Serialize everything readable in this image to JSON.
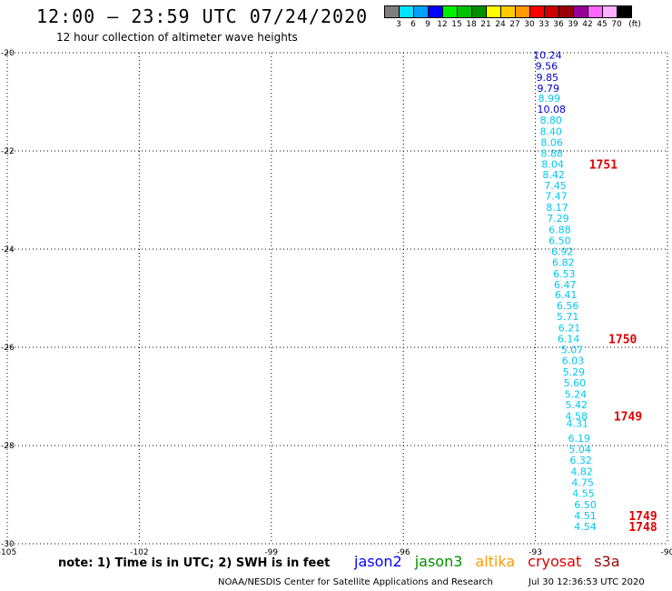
{
  "header": {
    "title": "12:00 – 23:59 UTC 07/24/2020",
    "subtitle": "12 hour collection of altimeter wave heights"
  },
  "color_scale": {
    "colors": [
      "#7f7f7f",
      "#00e5ff",
      "#00a0ff",
      "#0000ff",
      "#00f000",
      "#00c000",
      "#009000",
      "#ffff00",
      "#ffcc00",
      "#ff9900",
      "#ff0000",
      "#cc0000",
      "#990000",
      "#990099",
      "#ff66ff",
      "#ffb0ff",
      "#000000"
    ],
    "labels": [
      "3",
      "6",
      "9",
      "12",
      "15",
      "18",
      "21",
      "24",
      "27",
      "30",
      "33",
      "36",
      "39",
      "42",
      "45",
      "70",
      "(ft)"
    ]
  },
  "chart_data": {
    "type": "scatter",
    "title": "12:00 – 23:59 UTC 07/24/2020",
    "subtitle": "12 hour collection of altimeter wave heights",
    "xlim": [
      -105,
      -90
    ],
    "ylim": [
      -30,
      -20
    ],
    "x_ticks": [
      -105,
      -102,
      -99,
      -96,
      -93,
      -90
    ],
    "x_tick_labels": [
      "-105",
      "-102",
      "-99",
      "-96",
      "-93",
      "-90"
    ],
    "y_ticks": [
      -20,
      -22,
      -24,
      -26,
      -28,
      -30
    ],
    "y_tick_labels": [
      "-20",
      "-22",
      "-24",
      "-26",
      "-28",
      "-30"
    ],
    "grid": true,
    "series": [
      {
        "name": "cryosat",
        "color_light": "#00c8f0",
        "color_dark": "#0000cc",
        "points": [
          {
            "lat": -20.05,
            "lon": -93.05,
            "swh": 10.24
          },
          {
            "lat": -20.27,
            "lon": -93.0,
            "swh": 9.56
          },
          {
            "lat": -20.5,
            "lon": -92.98,
            "swh": 9.85
          },
          {
            "lat": -20.72,
            "lon": -92.96,
            "swh": 9.79
          },
          {
            "lat": -20.93,
            "lon": -92.94,
            "swh": 8.99
          },
          {
            "lat": -21.15,
            "lon": -92.96,
            "swh": 10.08
          },
          {
            "lat": -21.37,
            "lon": -92.9,
            "swh": 8.8
          },
          {
            "lat": -21.6,
            "lon": -92.9,
            "swh": 8.4
          },
          {
            "lat": -21.82,
            "lon": -92.88,
            "swh": 8.06
          },
          {
            "lat": -22.05,
            "lon": -92.88,
            "swh": 8.88
          },
          {
            "lat": -22.27,
            "lon": -92.86,
            "swh": 8.04
          },
          {
            "lat": -22.48,
            "lon": -92.84,
            "swh": 8.42
          },
          {
            "lat": -22.7,
            "lon": -92.8,
            "swh": 7.45
          },
          {
            "lat": -22.92,
            "lon": -92.78,
            "swh": 7.47
          },
          {
            "lat": -23.15,
            "lon": -92.76,
            "swh": 8.17
          },
          {
            "lat": -23.37,
            "lon": -92.74,
            "swh": 7.29
          },
          {
            "lat": -23.6,
            "lon": -92.7,
            "swh": 6.88
          },
          {
            "lat": -23.82,
            "lon": -92.7,
            "swh": 6.5
          },
          {
            "lat": -24.05,
            "lon": -92.64,
            "swh": 6.92
          },
          {
            "lat": -24.27,
            "lon": -92.62,
            "swh": 6.82
          },
          {
            "lat": -24.5,
            "lon": -92.6,
            "swh": 6.53
          },
          {
            "lat": -24.72,
            "lon": -92.58,
            "swh": 6.47
          },
          {
            "lat": -24.93,
            "lon": -92.56,
            "swh": 6.41
          },
          {
            "lat": -25.15,
            "lon": -92.52,
            "swh": 6.56
          },
          {
            "lat": -25.37,
            "lon": -92.52,
            "swh": 5.71
          },
          {
            "lat": -25.6,
            "lon": -92.48,
            "swh": 6.21
          },
          {
            "lat": -25.82,
            "lon": -92.5,
            "swh": 6.14
          },
          {
            "lat": -26.05,
            "lon": -92.42,
            "swh": 5.07
          },
          {
            "lat": -26.27,
            "lon": -92.4,
            "swh": 6.03
          },
          {
            "lat": -26.5,
            "lon": -92.38,
            "swh": 5.29
          },
          {
            "lat": -26.72,
            "lon": -92.36,
            "swh": 5.6
          },
          {
            "lat": -26.95,
            "lon": -92.34,
            "swh": 5.24
          },
          {
            "lat": -27.17,
            "lon": -92.32,
            "swh": 5.42
          },
          {
            "lat": -27.4,
            "lon": -92.32,
            "swh": 4.58
          },
          {
            "lat": -27.55,
            "lon": -92.3,
            "swh": 4.31
          },
          {
            "lat": -27.85,
            "lon": -92.26,
            "swh": 6.19
          },
          {
            "lat": -28.07,
            "lon": -92.24,
            "swh": 5.04
          },
          {
            "lat": -28.3,
            "lon": -92.22,
            "swh": 6.32
          },
          {
            "lat": -28.53,
            "lon": -92.2,
            "swh": 4.82
          },
          {
            "lat": -28.75,
            "lon": -92.18,
            "swh": 4.75
          },
          {
            "lat": -28.97,
            "lon": -92.16,
            "swh": 4.55
          },
          {
            "lat": -29.2,
            "lon": -92.12,
            "swh": 6.5
          },
          {
            "lat": -29.43,
            "lon": -92.12,
            "swh": 4.51
          },
          {
            "lat": -29.65,
            "lon": -92.12,
            "swh": 4.54
          }
        ]
      }
    ],
    "annotations": [
      {
        "text": "1751",
        "lat": -22.27,
        "lon": -91.78
      },
      {
        "text": "1750",
        "lat": -25.82,
        "lon": -91.34
      },
      {
        "text": "1749",
        "lat": -27.4,
        "lon": -91.22
      },
      {
        "text": "1749",
        "lat": -29.43,
        "lon": -90.88
      },
      {
        "text": "1748",
        "lat": -29.65,
        "lon": -90.88
      }
    ],
    "annotation_color": "#e00000"
  },
  "footer": {
    "note": "note: 1) Time is in UTC; 2) SWH is in feet",
    "satellites": [
      {
        "name": "jason2",
        "color": "#0000ff"
      },
      {
        "name": "jason3",
        "color": "#009000"
      },
      {
        "name": "altika",
        "color": "#ff9900"
      },
      {
        "name": "cryosat",
        "color": "#e00000"
      },
      {
        "name": "s3a",
        "color": "#990000"
      }
    ],
    "credit": "NOAA/NESDIS Center for Satellite Applications and Research",
    "stamp": "Jul 30 12:36:53 UTC 2020"
  }
}
